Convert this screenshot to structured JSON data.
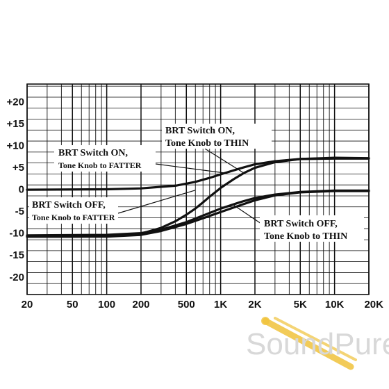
{
  "chart_data": {
    "type": "line",
    "title": "",
    "xlabel": "",
    "ylabel": "",
    "x_scale": "log",
    "xlim": [
      20,
      20000
    ],
    "ylim": [
      -24,
      24
    ],
    "grid": true,
    "x_tick_values": [
      20,
      50,
      100,
      200,
      500,
      1000,
      2000,
      5000,
      10000,
      20000
    ],
    "x_tick_labels": [
      "20",
      "50",
      "100",
      "200",
      "500",
      "1K",
      "2K",
      "5K",
      "10K",
      "20K"
    ],
    "y_tick_values": [
      20,
      15,
      10,
      5,
      0,
      -5,
      -10,
      -15,
      -20
    ],
    "y_tick_labels": [
      "+20",
      "+15",
      "+10",
      "+5",
      "0",
      "-5",
      "-10",
      "-15",
      "-20"
    ],
    "series": [
      {
        "name": "BRT Switch ON, Tone Knob to THIN",
        "points": [
          [
            20,
            -10.8
          ],
          [
            50,
            -10.8
          ],
          [
            100,
            -10.7
          ],
          [
            150,
            -10.5
          ],
          [
            200,
            -10.1
          ],
          [
            300,
            -8.8
          ],
          [
            400,
            -7.3
          ],
          [
            500,
            -5.8
          ],
          [
            600,
            -4.4
          ],
          [
            700,
            -3.0
          ],
          [
            800,
            -1.7
          ],
          [
            1000,
            0.3
          ],
          [
            1300,
            2.3
          ],
          [
            1600,
            3.7
          ],
          [
            2000,
            4.9
          ],
          [
            3000,
            6.2
          ],
          [
            5000,
            6.9
          ],
          [
            8000,
            7.1
          ],
          [
            10000,
            7.2
          ],
          [
            20000,
            7.1
          ]
        ]
      },
      {
        "name": "BRT Switch ON, Tone Knob to FATTER",
        "points": [
          [
            20,
            -0.1
          ],
          [
            100,
            0.0
          ],
          [
            200,
            0.2
          ],
          [
            400,
            0.8
          ],
          [
            600,
            1.7
          ],
          [
            800,
            2.6
          ],
          [
            1000,
            3.4
          ],
          [
            1500,
            4.8
          ],
          [
            2000,
            5.7
          ],
          [
            3000,
            6.4
          ],
          [
            5000,
            6.9
          ],
          [
            10000,
            7.0
          ],
          [
            20000,
            7.0
          ]
        ]
      },
      {
        "name": "BRT Switch OFF, Tone Knob to FATTER",
        "points": [
          [
            20,
            -10.5
          ],
          [
            100,
            -10.4
          ],
          [
            200,
            -10.0
          ],
          [
            300,
            -9.2
          ],
          [
            500,
            -7.5
          ],
          [
            700,
            -6.0
          ],
          [
            1000,
            -4.4
          ],
          [
            1500,
            -2.9
          ],
          [
            2000,
            -2.0
          ],
          [
            3000,
            -1.2
          ],
          [
            5000,
            -0.6
          ],
          [
            10000,
            -0.3
          ],
          [
            20000,
            -0.3
          ]
        ]
      },
      {
        "name": "BRT Switch OFF, Tone Knob to THIN",
        "points": [
          [
            20,
            -10.8
          ],
          [
            100,
            -10.8
          ],
          [
            200,
            -10.4
          ],
          [
            300,
            -9.5
          ],
          [
            500,
            -7.9
          ],
          [
            700,
            -6.6
          ],
          [
            1000,
            -5.2
          ],
          [
            1500,
            -3.6
          ],
          [
            2000,
            -2.5
          ],
          [
            3000,
            -1.4
          ],
          [
            5000,
            -0.7
          ],
          [
            10000,
            -0.4
          ],
          [
            20000,
            -0.4
          ]
        ]
      }
    ],
    "annotations": [
      {
        "line1": "BRT Switch ON,",
        "line2": "Tone Knob to THIN",
        "target": [
          1600,
          3.7
        ]
      },
      {
        "line1": "BRT Switch ON,",
        "line2": "Tone Knob to FATTER",
        "target": [
          1100,
          3.7
        ]
      },
      {
        "line1": "BRT Switch OFF,",
        "line2": "Tone Knob to FATTER",
        "target": [
          600,
          -0.2
        ]
      },
      {
        "line1": "BRT Switch OFF,",
        "line2": "Tone Knob to THIN",
        "target": [
          1300,
          -3.6
        ]
      }
    ]
  },
  "watermark": {
    "brand": "SoundPure",
    "color": "#d8d8d8",
    "accent": "#f0c33c"
  }
}
